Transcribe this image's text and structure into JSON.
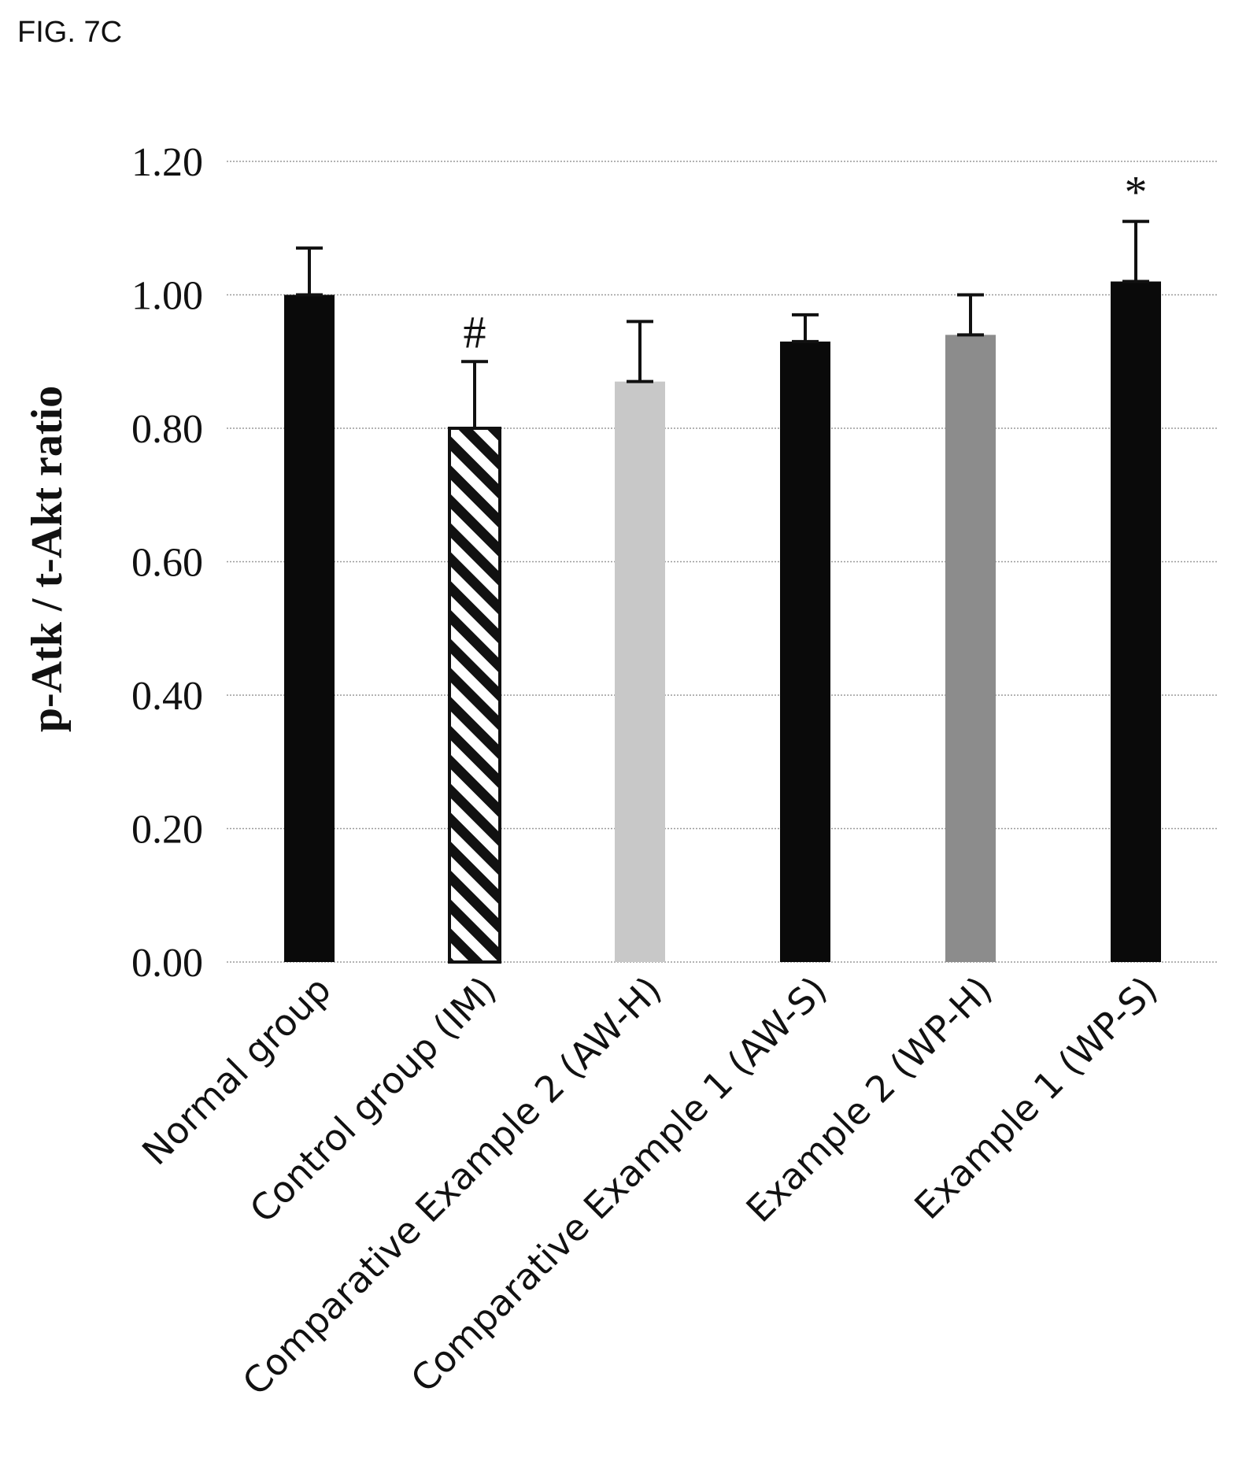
{
  "figure_label": "FIG. 7C",
  "chart_data": {
    "type": "bar",
    "categories": [
      "Normal group",
      "Control group (IM)",
      "Comparative Example 2 (AW-H)",
      "Comparative Example 1 (AW-S)",
      "Example 2 (WP-H)",
      "Example 1 (WP-S)"
    ],
    "values": [
      1.0,
      0.8,
      0.87,
      0.93,
      0.94,
      1.02
    ],
    "error": [
      0.07,
      0.1,
      0.09,
      0.04,
      0.06,
      0.09
    ],
    "annotations": [
      "",
      "#",
      "",
      "",
      "",
      "*"
    ],
    "bar_styles": [
      "black",
      "hatched",
      "lightgray",
      "black",
      "darkgray",
      "black"
    ],
    "colors": {
      "black": "#0a0a0a",
      "lightgray": "#c8c8c8",
      "darkgray": "#8c8c8c",
      "hatch": "#111111"
    },
    "ylabel": "p-Atk / t-Akt ratio",
    "ylim": [
      0,
      1.2
    ],
    "yticks": [
      "0.00",
      "0.20",
      "0.40",
      "0.60",
      "0.80",
      "1.00",
      "1.20"
    ],
    "grid": true
  }
}
